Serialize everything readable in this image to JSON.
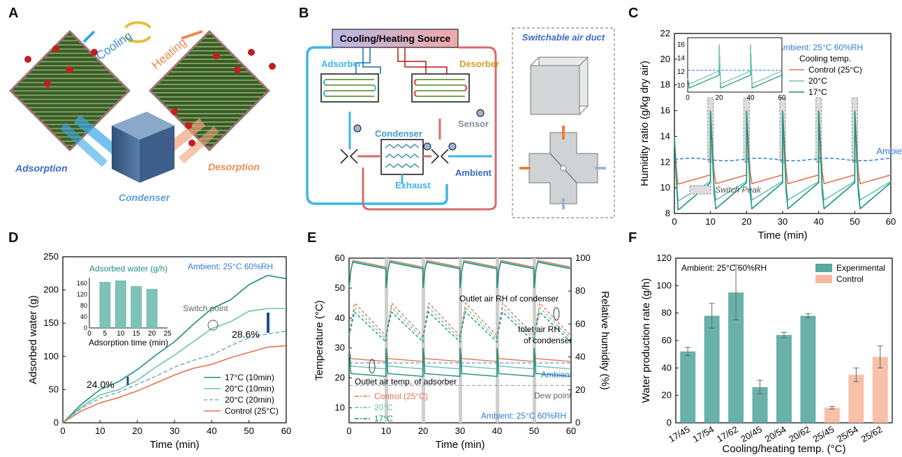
{
  "panels": {
    "A": {
      "letter": "A",
      "labels": {
        "cooling": "Cooling",
        "heating": "Heating",
        "adsorption": "Adsorption",
        "desorption": "Desorption",
        "condenser": "Condenser"
      }
    },
    "B": {
      "letter": "B",
      "labels": {
        "source": "Cooling/Heating Source",
        "adsorber": "Adsorber",
        "desorber": "Desorber",
        "condenser": "Condenser",
        "sensor": "Sensor",
        "exhaust": "Exhaust",
        "ambient": "Ambient",
        "duct_title": "Switchable air duct"
      },
      "colors": {
        "cool": "#3db6e8",
        "hot": "#d96b6b",
        "source_grad_left": "#b8b8e8",
        "source_grad_right": "#f3a9a9"
      }
    },
    "C": {
      "letter": "C"
    },
    "D": {
      "letter": "D"
    },
    "E": {
      "letter": "E"
    },
    "F": {
      "letter": "F"
    }
  },
  "chart_data": [
    {
      "id": "C",
      "type": "line",
      "xlabel": "Time (min)",
      "ylabel": "Humidity ratio (g/kg dry air)",
      "xlim": [
        0,
        60
      ],
      "ylim": [
        8,
        22
      ],
      "xticks": [
        "0",
        "10",
        "20",
        "30",
        "40",
        "50",
        "60"
      ],
      "yticks": [
        "8",
        "10",
        "12",
        "14",
        "16",
        "18",
        "20",
        "22"
      ],
      "ambient_text": "Ambient: 25°C 60%RH",
      "legend_title": "Cooling temp.",
      "series": [
        {
          "name": "Control (25°C)",
          "color": "#e8734f"
        },
        {
          "name": "20°C",
          "color": "#6dc4a8"
        },
        {
          "name": "17°C",
          "color": "#1f8f80"
        }
      ],
      "ambient_line": {
        "label": "Ambient",
        "value": 12.2,
        "color": "#2f7bd8"
      },
      "switch_label": "Switch Peak",
      "switch_times": [
        10,
        20,
        30,
        40,
        50
      ],
      "inset": {
        "xticks": [
          "0",
          "20",
          "40",
          "60"
        ],
        "yticks": [
          "10",
          "12",
          "14",
          "16"
        ]
      }
    },
    {
      "id": "D",
      "type": "line",
      "xlabel": "Time (min)",
      "ylabel": "Adsorbed water (g)",
      "xlim": [
        0,
        60
      ],
      "ylim": [
        0,
        250
      ],
      "xticks": [
        "0",
        "10",
        "20",
        "30",
        "40",
        "50",
        "60"
      ],
      "yticks": [
        "0",
        "50",
        "100",
        "150",
        "200",
        "250"
      ],
      "ambient_text": "Ambient: 25°C 60%RH",
      "series": [
        {
          "name": "17°C (10min)",
          "color": "#1f8f80",
          "x": [
            0,
            5,
            10,
            15,
            20,
            25,
            30,
            35,
            40,
            45,
            50,
            55,
            60
          ],
          "y": [
            0,
            28,
            50,
            62,
            80,
            102,
            122,
            148,
            172,
            185,
            208,
            222,
            217
          ]
        },
        {
          "name": "20°C (10min)",
          "color": "#6dc4a8",
          "x": [
            0,
            5,
            10,
            15,
            20,
            25,
            30,
            35,
            40,
            45,
            50,
            55,
            60
          ],
          "y": [
            0,
            24,
            42,
            50,
            64,
            84,
            102,
            122,
            142,
            152,
            168,
            172,
            172
          ]
        },
        {
          "name": "20°C (20min)",
          "color": "#7ab0c8",
          "dash": true,
          "x": [
            0,
            5,
            10,
            15,
            20,
            25,
            30,
            35,
            40,
            45,
            50,
            55,
            60
          ],
          "y": [
            0,
            22,
            37,
            46,
            58,
            70,
            84,
            94,
            102,
            116,
            128,
            134,
            138
          ]
        },
        {
          "name": "Control (25°C)",
          "color": "#e8734f",
          "x": [
            0,
            5,
            10,
            15,
            20,
            25,
            30,
            35,
            40,
            45,
            50,
            55,
            60
          ],
          "y": [
            0,
            18,
            30,
            38,
            48,
            60,
            72,
            82,
            88,
            98,
            106,
            114,
            116
          ]
        }
      ],
      "annotations": {
        "pct1": "24.0%",
        "pct2": "28.6%",
        "switch_point": "Switch point"
      },
      "inset": {
        "title": "Adsorbed water (g/h)",
        "xlabel": "Adsorption time (min)",
        "xticks": [
          "0",
          "5",
          "10",
          "15",
          "20",
          "25"
        ],
        "yticks": [
          "0",
          "40",
          "80",
          "120",
          "160"
        ],
        "categories": [
          5,
          10,
          15,
          20
        ],
        "values": [
          165,
          170,
          150,
          140
        ]
      }
    },
    {
      "id": "E",
      "type": "line",
      "xlabel": "Time (min)",
      "ylabel": "Temperature (°C)",
      "ylabel2": "Relative humidity (%)",
      "xlim": [
        0,
        60
      ],
      "ylim": [
        5,
        60
      ],
      "ylim2": [
        0,
        100
      ],
      "xticks": [
        "0",
        "10",
        "20",
        "30",
        "40",
        "50",
        "60"
      ],
      "yticks": [
        "10",
        "20",
        "30",
        "40",
        "50",
        "60"
      ],
      "yticks2": [
        "0",
        "20",
        "40",
        "60",
        "80",
        "100"
      ],
      "ambient_text": "Ambient: 25°C 60%RH",
      "series": [
        {
          "name": "Control (25°C)",
          "color": "#e8734f"
        },
        {
          "name": "20°C",
          "color": "#6dc4a8"
        },
        {
          "name": "17°C",
          "color": "#1f8f80"
        }
      ],
      "annotations": {
        "outlet_rh": "Outlet air RH of condenser",
        "inlet_rh_1": "Inlet air RH",
        "inlet_rh_2": "of condenser",
        "outlet_temp": "Outlet air temp. of adsorber",
        "ambient": "Ambient",
        "dew_point": "Dew point"
      }
    },
    {
      "id": "F",
      "type": "bar",
      "xlabel": "Cooling/heating temp. (°C)",
      "ylabel": "Water production rate (g/h)",
      "ylim": [
        0,
        120
      ],
      "yticks": [
        "0",
        "20",
        "40",
        "60",
        "80",
        "100",
        "120"
      ],
      "ambient_text": "Ambient: 25°C 60%RH",
      "categories": [
        "17/45",
        "17/54",
        "17/62",
        "20/45",
        "20/54",
        "20/62",
        "25/45",
        "25/54",
        "25/62"
      ],
      "values": [
        52,
        78,
        95,
        26,
        64,
        78,
        11,
        35,
        48
      ],
      "errors": [
        3,
        9,
        20,
        5,
        2,
        1.5,
        1,
        5,
        8
      ],
      "groups": [
        "Experimental",
        "Experimental",
        "Experimental",
        "Experimental",
        "Experimental",
        "Experimental",
        "Control",
        "Control",
        "Control"
      ],
      "legend": [
        {
          "name": "Experimental",
          "color": "#5aa8a0"
        },
        {
          "name": "Control",
          "color": "#f8b9a0"
        }
      ]
    }
  ]
}
